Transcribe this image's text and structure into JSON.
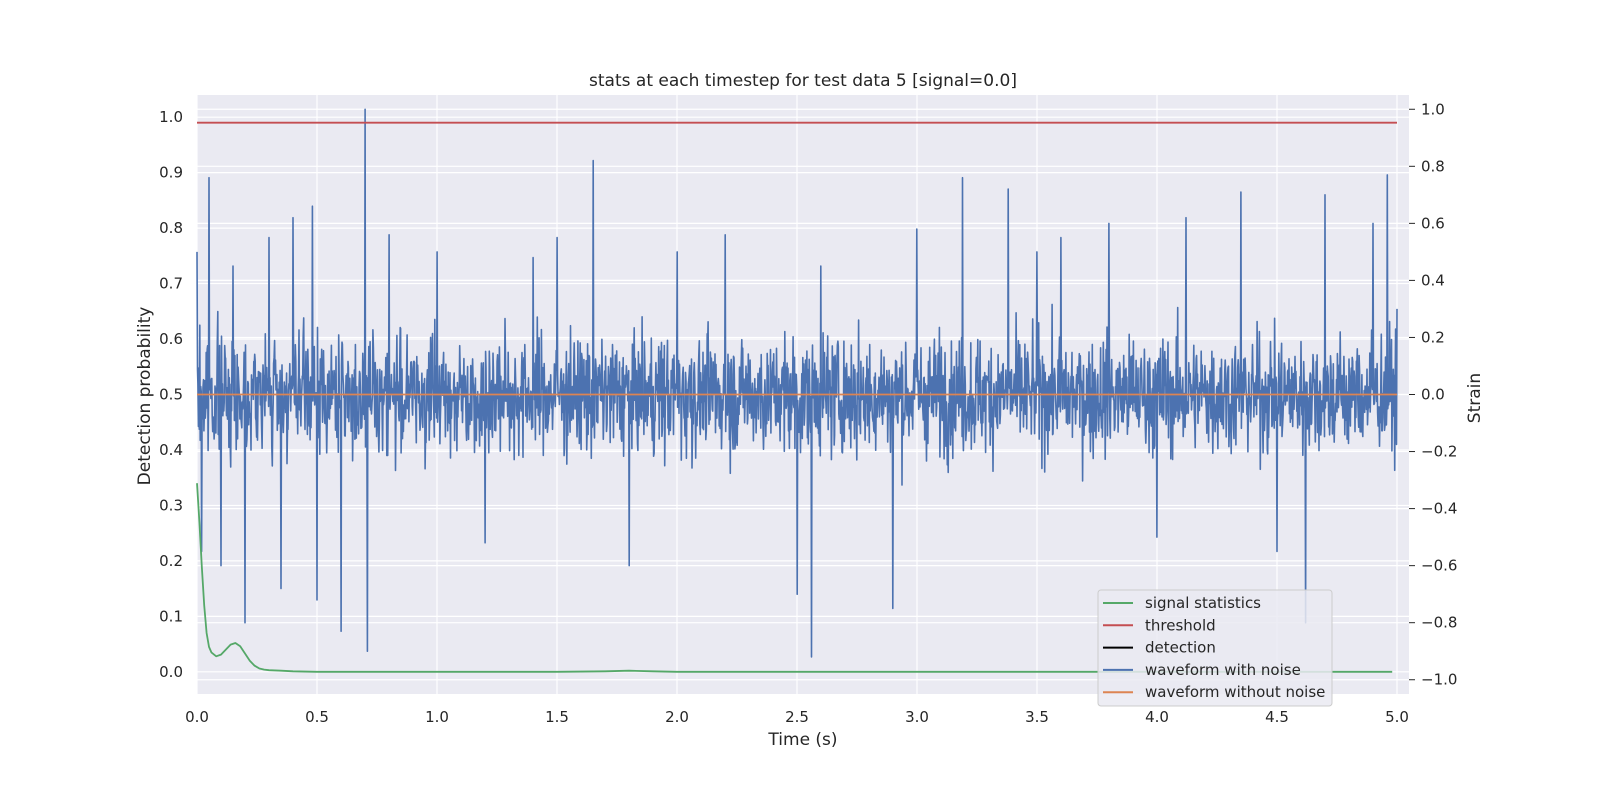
{
  "chart_data": {
    "type": "line",
    "title": "stats at each timestep for test data 5 [signal=0.0]",
    "xlabel": "Time (s)",
    "ylabel": "Detection probability",
    "y2label": "Strain",
    "xlim": [
      0.0,
      5.05
    ],
    "ylim": [
      -0.04,
      1.04
    ],
    "y2lim": [
      -1.05,
      1.05
    ],
    "x_ticks": [
      0.0,
      0.5,
      1.0,
      1.5,
      2.0,
      2.5,
      3.0,
      3.5,
      4.0,
      4.5,
      5.0
    ],
    "x_tick_labels": [
      "0.0",
      "0.5",
      "1.0",
      "1.5",
      "2.0",
      "2.5",
      "3.0",
      "3.5",
      "4.0",
      "4.5",
      "5.0"
    ],
    "y_ticks": [
      0.0,
      0.1,
      0.2,
      0.3,
      0.4,
      0.5,
      0.6,
      0.7,
      0.8,
      0.9,
      1.0
    ],
    "y_tick_labels": [
      "0.0",
      "0.1",
      "0.2",
      "0.3",
      "0.4",
      "0.5",
      "0.6",
      "0.7",
      "0.8",
      "0.9",
      "1.0"
    ],
    "y2_ticks": [
      -1.0,
      -0.8,
      -0.6,
      -0.4,
      -0.2,
      0.0,
      0.2,
      0.4,
      0.6,
      0.8,
      1.0
    ],
    "y2_tick_labels": [
      "−1.0",
      "−0.8",
      "−0.6",
      "−0.4",
      "−0.2",
      "0.0",
      "0.2",
      "0.4",
      "0.6",
      "0.8",
      "1.0"
    ],
    "grid": true,
    "legend_position": "lower-right",
    "series": [
      {
        "name": "signal statistics",
        "color": "#55a868",
        "axis": "left",
        "x": [
          0.0,
          0.01,
          0.02,
          0.03,
          0.04,
          0.05,
          0.06,
          0.08,
          0.1,
          0.12,
          0.14,
          0.16,
          0.18,
          0.2,
          0.22,
          0.24,
          0.26,
          0.28,
          0.3,
          0.35,
          0.4,
          0.5,
          0.8,
          1.0,
          1.5,
          1.7,
          1.8,
          1.9,
          2.0,
          2.5,
          3.0,
          3.5,
          4.0,
          4.5,
          4.98
        ],
        "y": [
          0.34,
          0.27,
          0.19,
          0.12,
          0.07,
          0.045,
          0.035,
          0.028,
          0.031,
          0.04,
          0.049,
          0.052,
          0.046,
          0.033,
          0.02,
          0.011,
          0.006,
          0.004,
          0.003,
          0.002,
          0.001,
          0.0,
          0.0,
          0.0,
          0.0,
          0.001,
          0.002,
          0.001,
          0.0,
          0.0,
          0.0,
          0.0,
          0.0,
          0.0,
          0.0
        ]
      },
      {
        "name": "threshold",
        "color": "#c44e52",
        "axis": "left",
        "x": [
          0.0,
          5.0
        ],
        "y": [
          0.99,
          0.99
        ]
      },
      {
        "name": "detection",
        "color": "#000000",
        "axis": "left",
        "x": [],
        "y": []
      },
      {
        "name": "waveform with noise",
        "color": "#4c72b0",
        "axis": "right",
        "x": [
          0.0,
          0.02,
          0.05,
          0.1,
          0.15,
          0.2,
          0.3,
          0.35,
          0.4,
          0.48,
          0.5,
          0.6,
          0.7,
          0.71,
          0.8,
          1.0,
          1.2,
          1.4,
          1.5,
          1.65,
          1.8,
          2.0,
          2.2,
          2.5,
          2.56,
          2.6,
          2.9,
          3.0,
          3.19,
          3.38,
          3.5,
          3.6,
          3.8,
          4.0,
          4.12,
          4.35,
          4.5,
          4.62,
          4.7,
          4.9,
          4.96,
          5.0
        ],
        "y": [
          0.5,
          -0.55,
          0.76,
          -0.6,
          0.45,
          -0.8,
          0.55,
          -0.68,
          0.62,
          0.66,
          -0.72,
          -0.83,
          1.0,
          -0.9,
          0.56,
          0.5,
          -0.52,
          0.48,
          0.55,
          0.82,
          -0.6,
          0.5,
          0.56,
          -0.7,
          -0.92,
          0.45,
          -0.75,
          0.58,
          0.76,
          0.72,
          0.5,
          0.55,
          0.6,
          -0.5,
          0.62,
          0.71,
          -0.55,
          -0.8,
          0.7,
          0.6,
          0.77,
          0.3
        ]
      },
      {
        "name": "waveform without noise",
        "color": "#dd8452",
        "axis": "right",
        "x": [
          0.0,
          5.0
        ],
        "y": [
          0.0,
          0.0
        ]
      }
    ]
  }
}
